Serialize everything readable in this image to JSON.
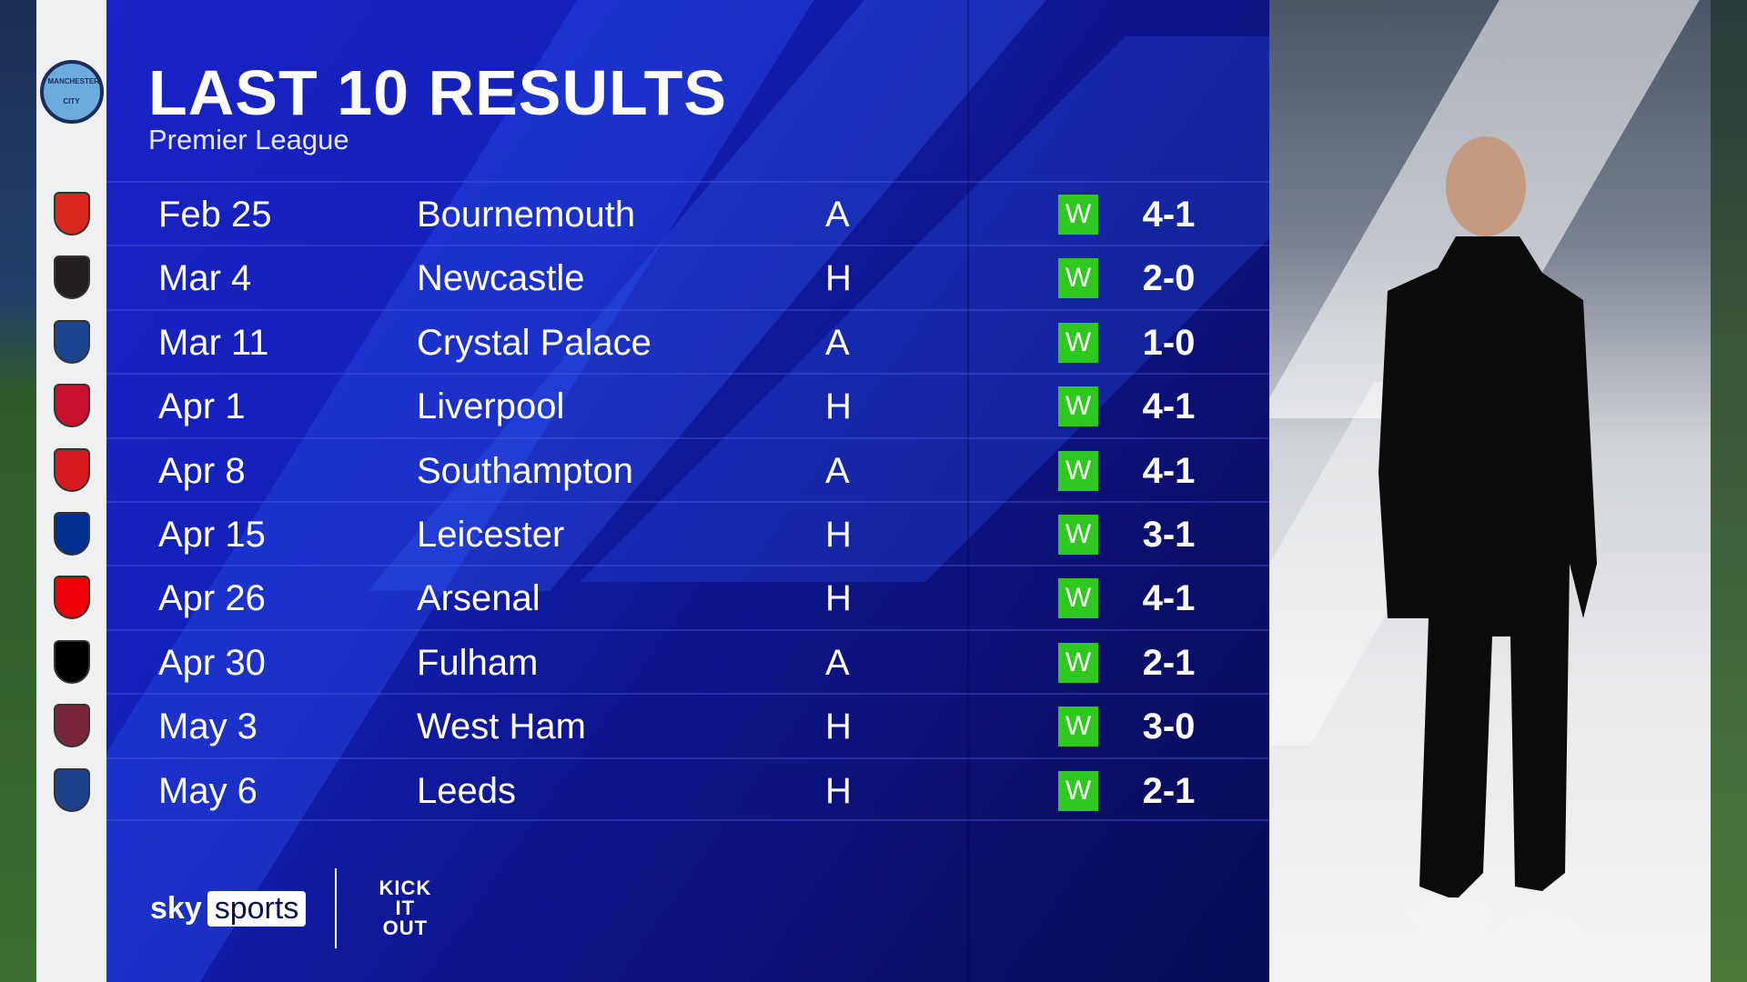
{
  "header": {
    "title": "LAST 10 RESULTS",
    "subtitle": "Premier League"
  },
  "team": {
    "name": "Manchester City",
    "crest_text": "MANCHESTER CITY",
    "color": "#6cabdd"
  },
  "results": [
    {
      "date": "Feb 25",
      "opponent": "Bournemouth",
      "venue": "A",
      "result": "W",
      "score": "4-1",
      "crest_color": "#da291c"
    },
    {
      "date": "Mar 4",
      "opponent": "Newcastle",
      "venue": "H",
      "result": "W",
      "score": "2-0",
      "crest_color": "#241f20"
    },
    {
      "date": "Mar 11",
      "opponent": "Crystal Palace",
      "venue": "A",
      "result": "W",
      "score": "1-0",
      "crest_color": "#1b458f"
    },
    {
      "date": "Apr 1",
      "opponent": "Liverpool",
      "venue": "H",
      "result": "W",
      "score": "4-1",
      "crest_color": "#c8102e"
    },
    {
      "date": "Apr 8",
      "opponent": "Southampton",
      "venue": "A",
      "result": "W",
      "score": "4-1",
      "crest_color": "#d71920"
    },
    {
      "date": "Apr 15",
      "opponent": "Leicester",
      "venue": "H",
      "result": "W",
      "score": "3-1",
      "crest_color": "#003090"
    },
    {
      "date": "Apr 26",
      "opponent": "Arsenal",
      "venue": "H",
      "result": "W",
      "score": "4-1",
      "crest_color": "#ef0107"
    },
    {
      "date": "Apr 30",
      "opponent": "Fulham",
      "venue": "A",
      "result": "W",
      "score": "2-1",
      "crest_color": "#000000"
    },
    {
      "date": "May 3",
      "opponent": "West Ham",
      "venue": "H",
      "result": "W",
      "score": "3-0",
      "crest_color": "#7a263a"
    },
    {
      "date": "May 6",
      "opponent": "Leeds",
      "venue": "H",
      "result": "W",
      "score": "2-1",
      "crest_color": "#1d428a"
    }
  ],
  "colors": {
    "win": "#2ec81e",
    "panel": "#1321b8"
  },
  "footer": {
    "sky": "sky",
    "sports": "sports",
    "kick_it_out": [
      "KICK",
      "IT",
      "OUT"
    ]
  }
}
